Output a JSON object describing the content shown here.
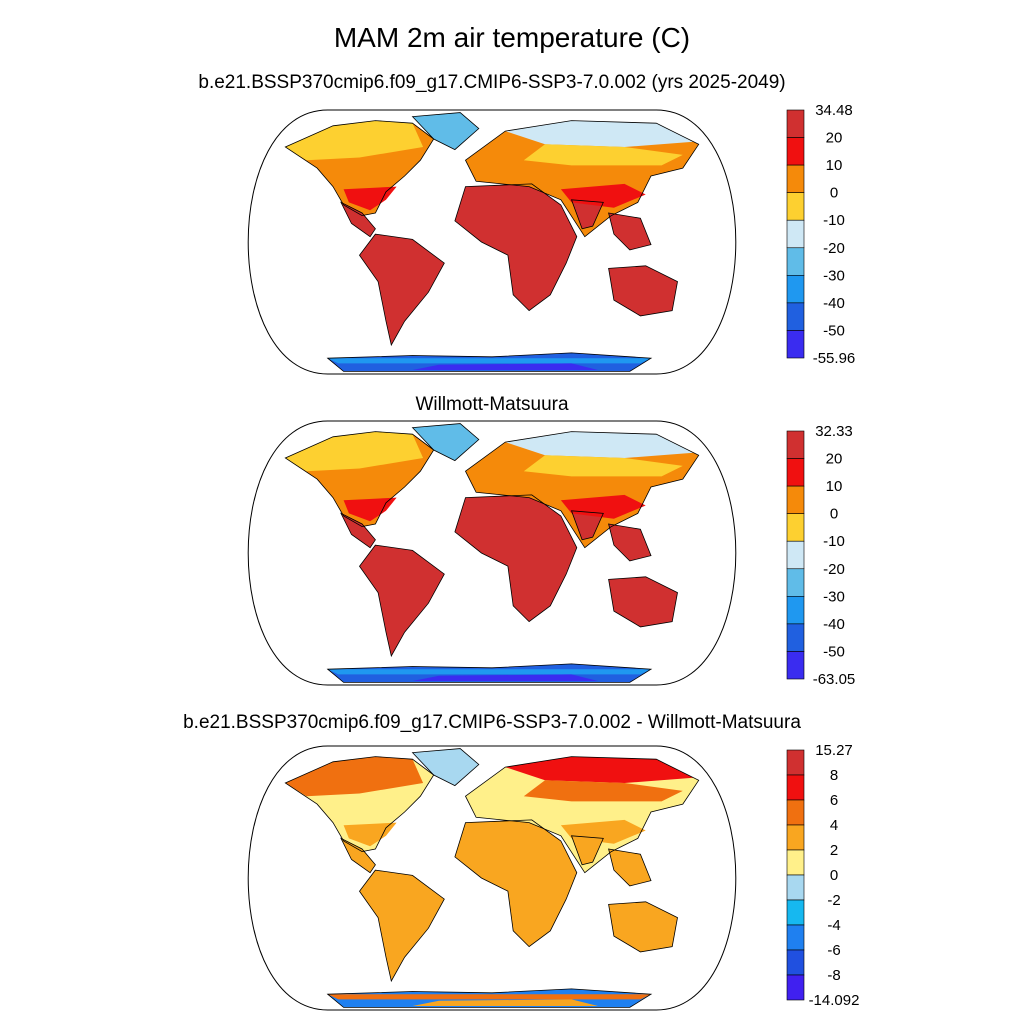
{
  "title": "MAM 2m air temperature (C)",
  "panels": [
    {
      "id": "model",
      "subtitle": "b.e21.BSSP370cmip6.f09_g17.CMIP6-SSP3-7.0.002 (yrs 2025-2049)",
      "colorbar": {
        "labels": [
          "34.48",
          "20",
          "10",
          "0",
          "-10",
          "-20",
          "-30",
          "-40",
          "-50",
          "-55.96"
        ],
        "colors": [
          "#d03030",
          "#f01010",
          "#f58a0a",
          "#fdd030",
          "#cfe8f5",
          "#60bce8",
          "#1f98f0",
          "#2060e0",
          "#3a2cf0"
        ]
      },
      "fields": {
        "warm": "#d03030",
        "mid": "#f01010",
        "cool": "#f58a0a",
        "north": "#fdd030",
        "arctic": "#cfe8f5",
        "greenland": "#60bce8",
        "ant_edge": "#1f98f0",
        "ant_mid": "#2060e0",
        "ant_core": "#3a2cf0"
      }
    },
    {
      "id": "obs",
      "subtitle": "Willmott-Matsuura",
      "colorbar": {
        "labels": [
          "32.33",
          "20",
          "10",
          "0",
          "-10",
          "-20",
          "-30",
          "-40",
          "-50",
          "-63.05"
        ],
        "colors": [
          "#d03030",
          "#f01010",
          "#f58a0a",
          "#fdd030",
          "#cfe8f5",
          "#60bce8",
          "#1f98f0",
          "#2060e0",
          "#3a2cf0"
        ]
      },
      "fields": {
        "warm": "#d03030",
        "mid": "#f01010",
        "cool": "#f58a0a",
        "north": "#fdd030",
        "arctic": "#cfe8f5",
        "greenland": "#60bce8",
        "ant_edge": "#1f98f0",
        "ant_mid": "#2060e0",
        "ant_core": "#3a2cf0"
      }
    },
    {
      "id": "diff",
      "subtitle": "b.e21.BSSP370cmip6.f09_g17.CMIP6-SSP3-7.0.002 - Willmott-Matsuura",
      "colorbar": {
        "labels": [
          "15.27",
          "8",
          "6",
          "4",
          "2",
          "0",
          "-2",
          "-4",
          "-6",
          "-8",
          "-14.092"
        ],
        "colors": [
          "#d03030",
          "#f01010",
          "#f07010",
          "#f9a620",
          "#fff08a",
          "#a8d8f0",
          "#16b8f0",
          "#1f80f0",
          "#2050e0",
          "#4020f0"
        ]
      },
      "fields": {
        "warm": "#f9a620",
        "mid": "#f9a620",
        "cool": "#fff08a",
        "north": "#f07010",
        "arctic": "#f01010",
        "greenland": "#a8d8f0",
        "ant_edge": "#f07010",
        "ant_mid": "#1f80f0",
        "ant_core": "#f9a620"
      }
    }
  ]
}
